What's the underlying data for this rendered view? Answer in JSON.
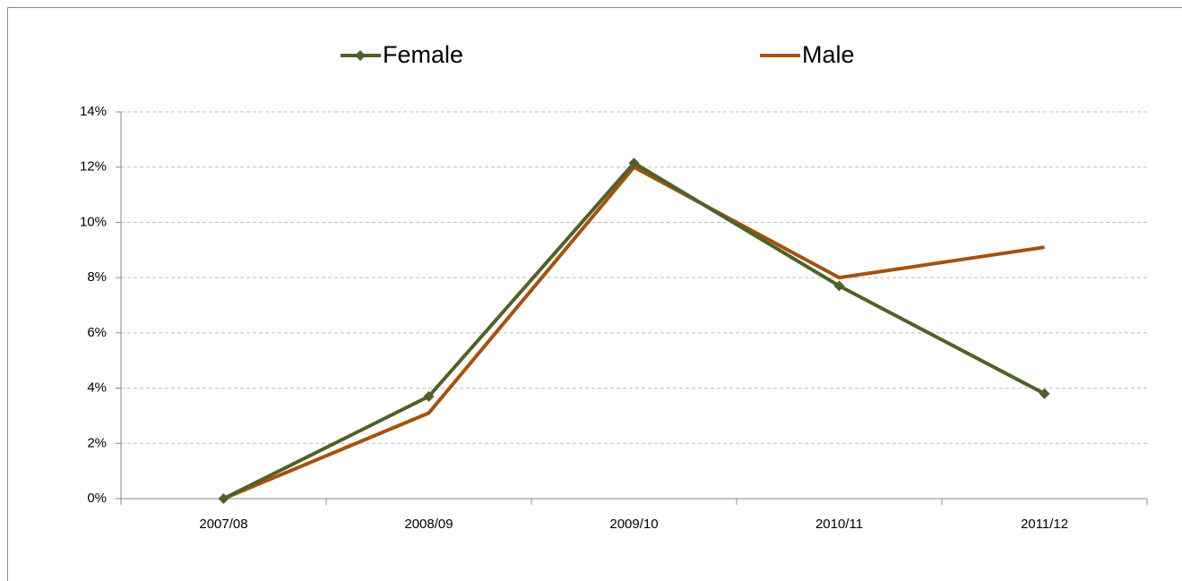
{
  "chart_data": {
    "type": "line",
    "categories": [
      "2007/08",
      "2008/09",
      "2009/10",
      "2010/11",
      "2011/12"
    ],
    "series": [
      {
        "name": "Female",
        "color": "#4f6228",
        "marker": "diamond",
        "values": [
          0,
          3.7,
          12.15,
          7.7,
          3.8
        ]
      },
      {
        "name": "Male",
        "color": "#a5520f",
        "values": [
          0,
          3.1,
          12.0,
          8.0,
          9.1
        ]
      }
    ],
    "ylim": [
      0,
      14
    ],
    "yticks": [
      {
        "value": 0,
        "label": "0%"
      },
      {
        "value": 2,
        "label": "2%"
      },
      {
        "value": 4,
        "label": "4%"
      },
      {
        "value": 6,
        "label": "6%"
      },
      {
        "value": 8,
        "label": "8%"
      },
      {
        "value": 10,
        "label": "10%"
      },
      {
        "value": 12,
        "label": "12%"
      },
      {
        "value": 14,
        "label": "14%"
      }
    ],
    "grid": true,
    "legend": "top"
  }
}
